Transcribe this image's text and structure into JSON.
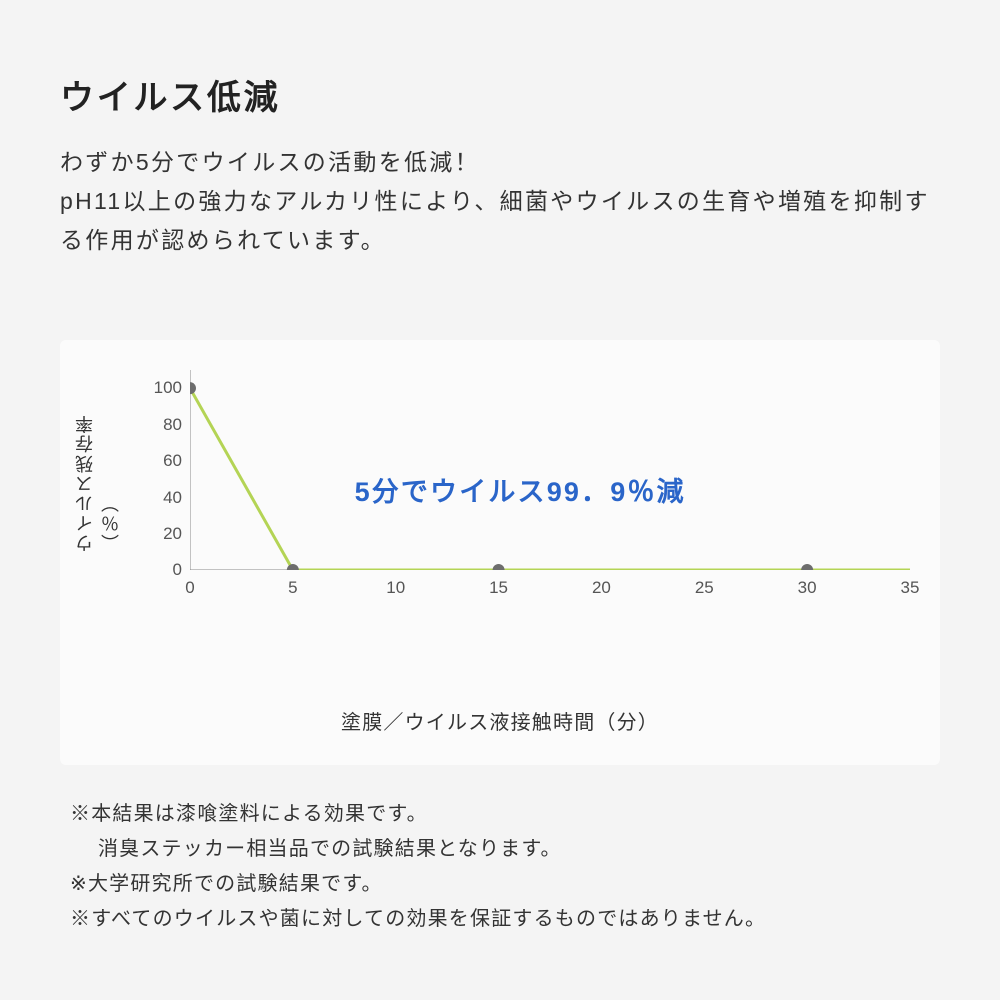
{
  "heading": "ウイルス低減",
  "lead_lines": [
    "わずか5分でウイルスの活動を低減！",
    "pH11以上の強力なアルカリ性により、細菌やウイルスの生育や増殖を抑制する作用が認められています。"
  ],
  "chart": {
    "type": "line",
    "ylabel": "ウイルス残存率（％）",
    "xlabel": "塗膜／ウイルス液接触時間（分）",
    "xlim": [
      0,
      35
    ],
    "ylim": [
      0,
      110
    ],
    "xticks": [
      0,
      5,
      10,
      15,
      20,
      25,
      30,
      35
    ],
    "yticks": [
      0,
      20,
      40,
      60,
      80,
      100
    ],
    "data_x": [
      0,
      5,
      15,
      30,
      35
    ],
    "data_y": [
      100,
      0,
      0,
      0,
      0
    ],
    "marker_at_x": [
      0,
      5,
      15,
      30
    ],
    "line_color": "#b4d455",
    "marker_color": "#6d6d6d",
    "marker_radius": 6,
    "line_width": 3,
    "axis_color": "#888888",
    "panel_bg": "#fbfbfb",
    "tick_fontsize": 17,
    "label_fontsize": 20,
    "callout_text": "5分でウイルス99．9％減",
    "callout_color": "#2a65c9",
    "callout_fontsize": 27
  },
  "notes": [
    "※本結果は漆喰塗料による効果です。",
    "　 消臭ステッカー相当品での試験結果となります。",
    "※大学研究所での試験結果です。",
    "※すべてのウイルスや菌に対しての効果を保証するものではありません。"
  ]
}
